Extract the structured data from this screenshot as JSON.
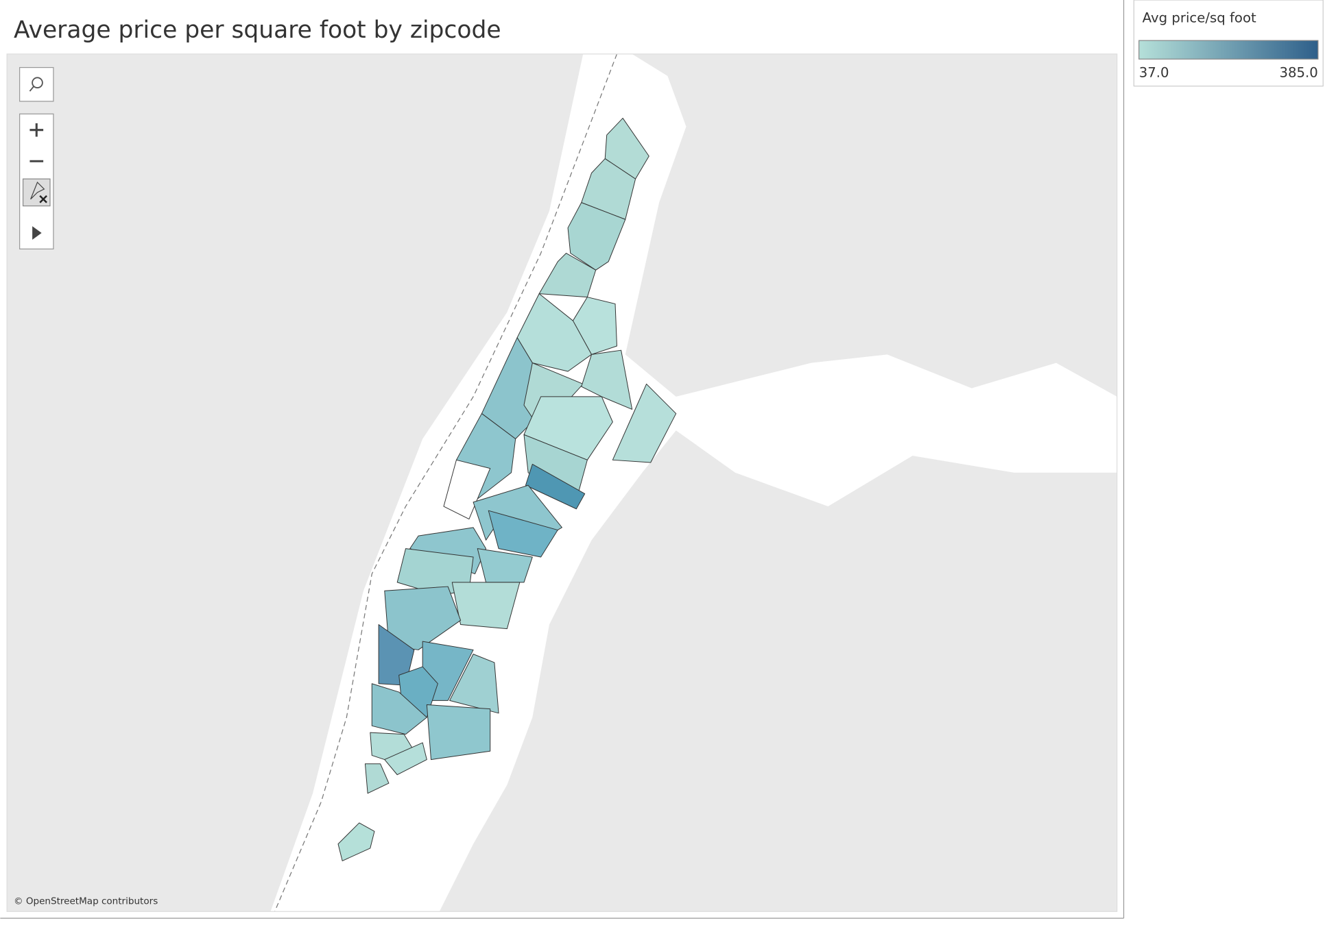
{
  "title": "Average price per square foot by zipcode",
  "legend": {
    "title": "Avg price/sq foot",
    "min": {
      "value": 37,
      "label": "37.0"
    },
    "max": {
      "value": 385,
      "label": "385.0"
    },
    "colors": [
      "#b5e0d9",
      "#2e5f8a"
    ]
  },
  "attribution": "© OpenStreetMap contributors"
}
